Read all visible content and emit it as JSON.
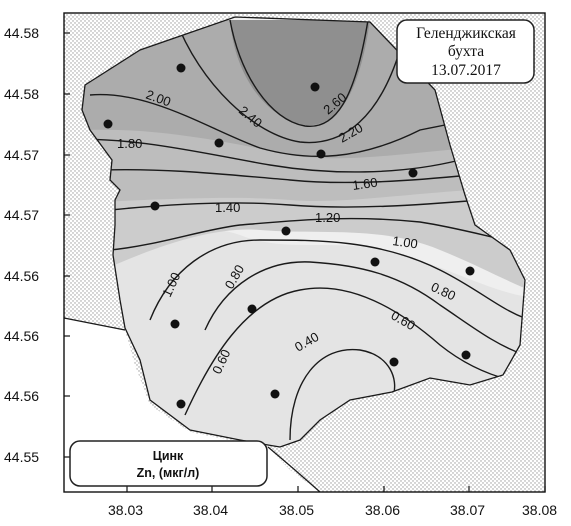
{
  "title": {
    "line1": "Геленджикская",
    "line2": "бухта",
    "line3": "13.07.2017"
  },
  "legend": {
    "line1": "Цинк",
    "line2": "Zn, (мкг/л)"
  },
  "axes": {
    "x_ticks": [
      "38.03",
      "38.04",
      "38.05",
      "38.06",
      "38.07",
      "38.08"
    ],
    "y_ticks": [
      "44.58",
      "44.58",
      "44.57",
      "44.57",
      "44.56",
      "44.56",
      "44.56",
      "44.55"
    ]
  },
  "contour_labels": [
    "2.00",
    "2.40",
    "2.60",
    "2.20",
    "1.80",
    "1.60",
    "1.40",
    "1.20",
    "1.00",
    "1.00",
    "0.80",
    "0.80",
    "0.60",
    "0.60",
    "0.40"
  ],
  "colors": {
    "land_pattern": "#d7d7d7",
    "fill_low": "#efefef",
    "fill_high": "#8a8a8a"
  }
}
